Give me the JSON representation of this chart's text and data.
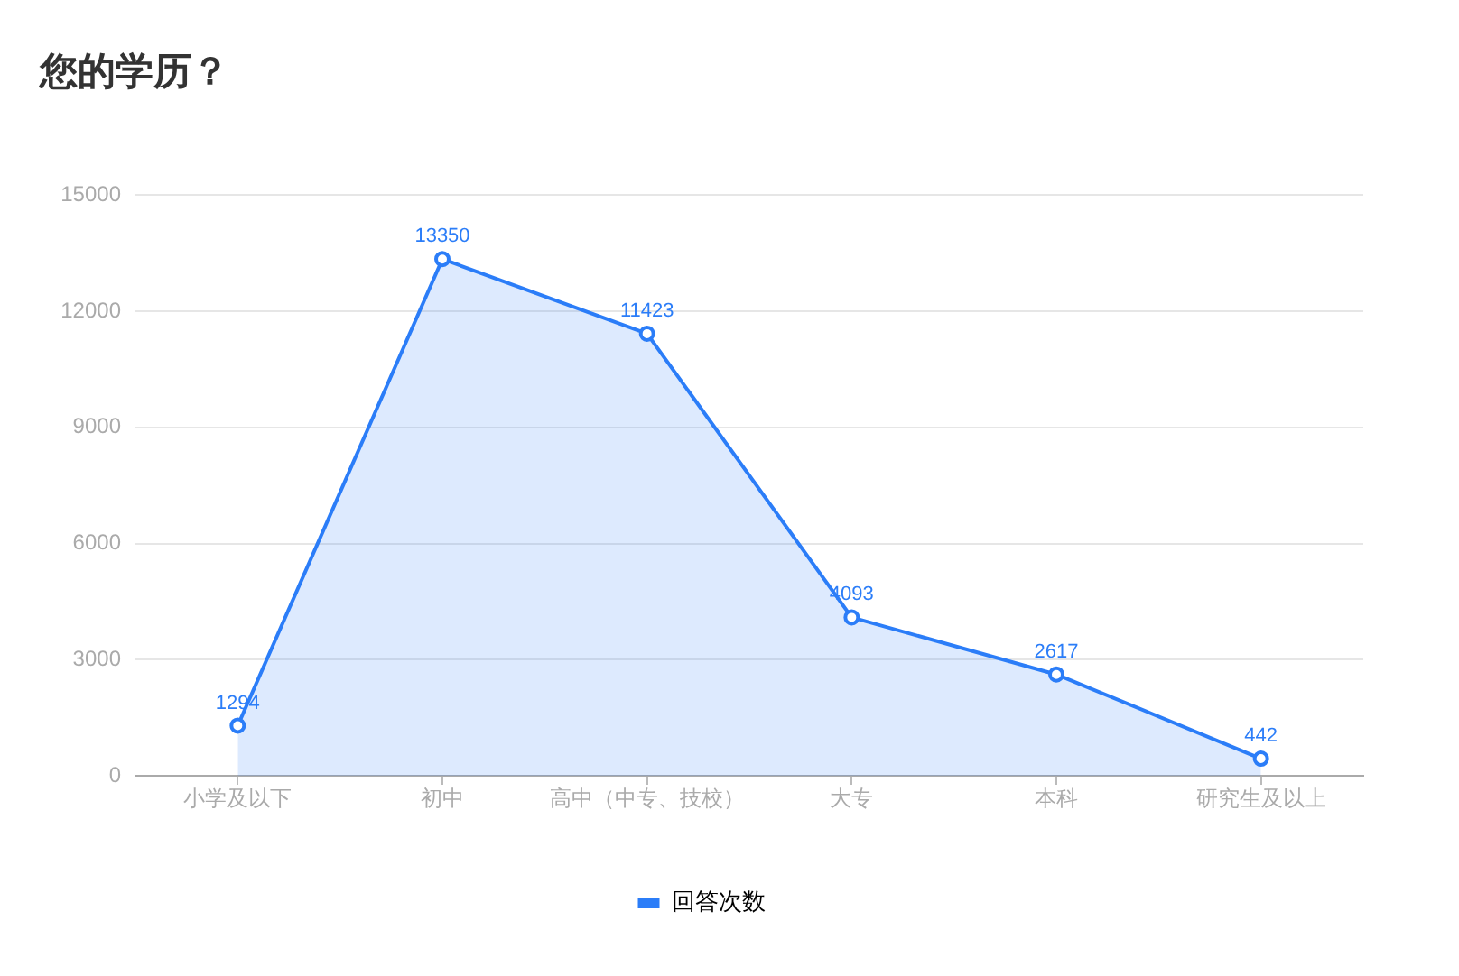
{
  "chart_data": {
    "type": "area",
    "title": "您的学历？",
    "categories": [
      "小学及以下",
      "初中",
      "高中（中专、技校）",
      "大专",
      "本科",
      "研究生及以上"
    ],
    "series": [
      {
        "name": "回答次数",
        "color": "#2b7df8",
        "values": [
          1294,
          13350,
          11423,
          4093,
          2617,
          442
        ]
      }
    ],
    "ylim": [
      0,
      15000
    ],
    "yticks": [
      0,
      3000,
      6000,
      9000,
      12000,
      15000
    ],
    "grid": "y",
    "legend": "bottom",
    "marker": "circle",
    "data_labels": true
  }
}
